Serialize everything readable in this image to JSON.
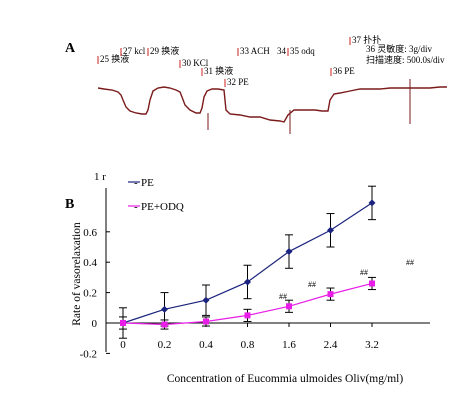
{
  "panel_a": {
    "label": "A",
    "annotations": [
      "25 换液",
      "27 kcl",
      "29 换液",
      "30 KCl",
      "31 换液",
      "32 PE",
      "33 ACH",
      "34",
      "35 odq",
      "36 PE",
      "37 扑扑"
    ],
    "recorder_info": [
      "36 灵敏度: 3g/div",
      "扫描速度: 500.0s/div"
    ],
    "trace_color": "#7a1a1a"
  },
  "panel_b": {
    "label": "B",
    "stray_mark": "1 r"
  },
  "chart_data": {
    "type": "line",
    "categories": [
      "0",
      "0.2",
      "0.4",
      "0.8",
      "1.6",
      "2.4",
      "3.2"
    ],
    "series": [
      {
        "name": "PE",
        "color": "#1a237e",
        "marker": "diamond",
        "values": [
          0.0,
          0.09,
          0.15,
          0.27,
          0.47,
          0.61,
          0.79
        ],
        "errors": [
          0.1,
          0.11,
          0.1,
          0.11,
          0.11,
          0.11,
          0.11
        ]
      },
      {
        "name": "PE+ODQ",
        "color": "#e81ee8",
        "marker": "square",
        "values": [
          0.0,
          -0.01,
          0.01,
          0.05,
          0.11,
          0.19,
          0.26
        ],
        "errors": [
          0.04,
          0.03,
          0.03,
          0.04,
          0.04,
          0.04,
          0.04
        ]
      }
    ],
    "significance": [
      "##",
      "##",
      "##",
      "##"
    ],
    "xlabel": "Concentration of Eucommia ulmoides Oliv(mg/ml)",
    "ylabel": "Rate of vasorelaxation",
    "yticks": [
      "-0.2",
      "0",
      "0.2",
      "0.4",
      "0.6"
    ],
    "ylim": [
      -0.2,
      0.8
    ],
    "grid": false,
    "legend": "top-left"
  }
}
